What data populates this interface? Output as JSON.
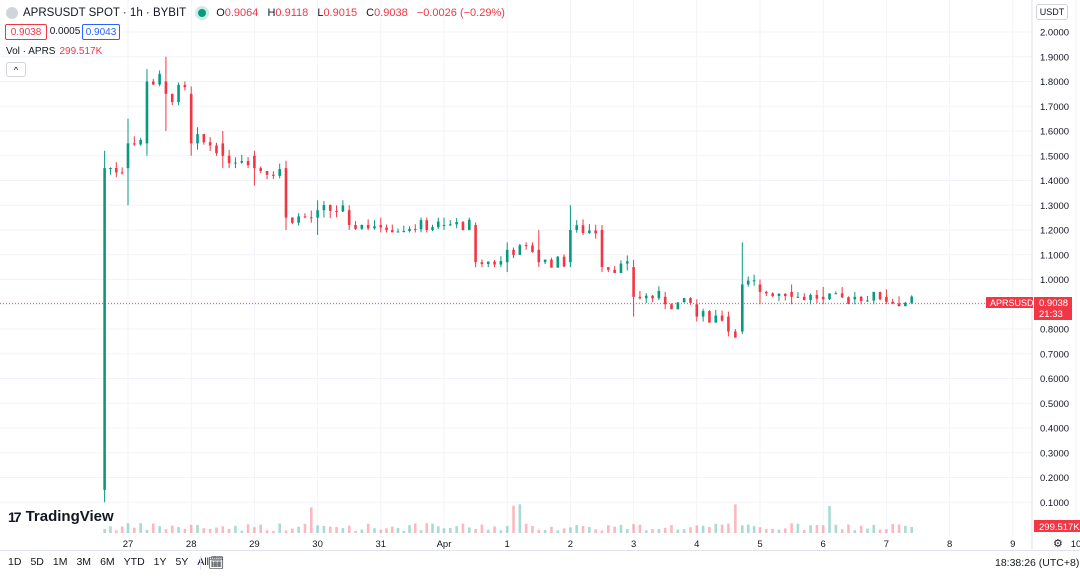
{
  "header": {
    "symbol_title": "APRSUSDT SPOT · 1h · BYBIT",
    "ohlc": {
      "o_label": "O",
      "o": "0.9064",
      "h_label": "H",
      "h": "0.9118",
      "l_label": "L",
      "l": "0.9015",
      "c_label": "C",
      "c": "0.9038"
    },
    "change": "−0.0026 (−0.29%)",
    "bid": "0.9038",
    "spread": "0.0005",
    "ask": "0.9043",
    "volume_label": "Vol · APRS",
    "volume_value": "299.517K",
    "collapse_glyph": "^",
    "currency": "USDT"
  },
  "branding": {
    "logo_mark": "17",
    "logo_text": "TradingView"
  },
  "toolbar": {
    "ranges": [
      "1D",
      "5D",
      "1M",
      "3M",
      "6M",
      "YTD",
      "1Y",
      "5Y",
      "All"
    ],
    "clock": "18:38:26 (UTC+8)"
  },
  "colors": {
    "up": "#089981",
    "down": "#f23645",
    "grid": "#f0f3fa",
    "text": "#131722"
  },
  "chart_data": {
    "type": "candlestick",
    "interval": "1h",
    "price_axis_ticks": [
      "2.0000",
      "1.9000",
      "1.8000",
      "1.7000",
      "1.6000",
      "1.5000",
      "1.4000",
      "1.3000",
      "1.2000",
      "1.1000",
      "1.0000",
      "0.9000",
      "0.8000",
      "0.7000",
      "0.6000",
      "0.5000",
      "0.4000",
      "0.3000",
      "0.2000",
      "0.1000"
    ],
    "ylim": [
      0.0,
      2.0
    ],
    "time_axis_labels": [
      "27",
      "28",
      "29",
      "30",
      "31",
      "Apr",
      "1",
      "2",
      "3",
      "4",
      "5",
      "6",
      "7",
      "8",
      "9",
      "10"
    ],
    "time_axis_values": [
      27,
      28,
      29,
      30,
      31,
      32,
      33,
      34,
      35,
      36,
      37,
      38,
      39,
      40,
      41,
      42
    ],
    "price_line": {
      "label": "APRSUSDT",
      "value": "0.9038",
      "countdown": "21:33",
      "price": 0.9038
    },
    "volume_label_value": "299.517K",
    "candles_daily_shape": [
      {
        "day": 26.63,
        "open": 0.15,
        "high": 1.52,
        "low": 0.1,
        "close": 1.45
      },
      {
        "day": 27.0,
        "open": 1.45,
        "high": 1.65,
        "low": 1.3,
        "close": 1.55
      },
      {
        "day": 27.3,
        "open": 1.55,
        "high": 1.85,
        "low": 1.5,
        "close": 1.8
      },
      {
        "day": 27.6,
        "open": 1.8,
        "high": 1.9,
        "low": 1.6,
        "close": 1.75
      },
      {
        "day": 28.0,
        "open": 1.75,
        "high": 1.78,
        "low": 1.5,
        "close": 1.55
      },
      {
        "day": 28.5,
        "open": 1.55,
        "high": 1.6,
        "low": 1.45,
        "close": 1.5
      },
      {
        "day": 29.0,
        "open": 1.5,
        "high": 1.52,
        "low": 1.38,
        "close": 1.45
      },
      {
        "day": 29.5,
        "open": 1.45,
        "high": 1.48,
        "low": 1.2,
        "close": 1.25
      },
      {
        "day": 30.0,
        "open": 1.25,
        "high": 1.32,
        "low": 1.18,
        "close": 1.28
      },
      {
        "day": 30.5,
        "open": 1.28,
        "high": 1.3,
        "low": 1.2,
        "close": 1.22
      },
      {
        "day": 31.0,
        "open": 1.22,
        "high": 1.25,
        "low": 1.19,
        "close": 1.21
      },
      {
        "day": 32.0,
        "open": 1.22,
        "high": 1.25,
        "low": 1.2,
        "close": 1.22
      },
      {
        "day": 32.5,
        "open": 1.22,
        "high": 1.23,
        "low": 1.05,
        "close": 1.07
      },
      {
        "day": 33.0,
        "open": 1.07,
        "high": 1.15,
        "low": 1.03,
        "close": 1.12
      },
      {
        "day": 33.5,
        "open": 1.12,
        "high": 1.2,
        "low": 1.05,
        "close": 1.07
      },
      {
        "day": 34.0,
        "open": 1.07,
        "high": 1.3,
        "low": 1.05,
        "close": 1.2
      },
      {
        "day": 34.5,
        "open": 1.2,
        "high": 1.22,
        "low": 1.03,
        "close": 1.05
      },
      {
        "day": 35.0,
        "open": 1.05,
        "high": 1.08,
        "low": 0.85,
        "close": 0.93
      },
      {
        "day": 35.5,
        "open": 0.93,
        "high": 0.95,
        "low": 0.88,
        "close": 0.9
      },
      {
        "day": 36.0,
        "open": 0.9,
        "high": 0.92,
        "low": 0.83,
        "close": 0.85
      },
      {
        "day": 36.5,
        "open": 0.85,
        "high": 0.87,
        "low": 0.77,
        "close": 0.79
      },
      {
        "day": 36.72,
        "open": 0.79,
        "high": 1.15,
        "low": 0.78,
        "close": 0.98
      },
      {
        "day": 37.0,
        "open": 0.98,
        "high": 1.0,
        "low": 0.9,
        "close": 0.95
      },
      {
        "day": 37.5,
        "open": 0.95,
        "high": 0.98,
        "low": 0.9,
        "close": 0.93
      },
      {
        "day": 38.0,
        "open": 0.93,
        "high": 0.97,
        "low": 0.9,
        "close": 0.92
      },
      {
        "day": 38.5,
        "open": 0.92,
        "high": 0.95,
        "low": 0.9,
        "close": 0.93
      },
      {
        "day": 39.0,
        "open": 0.93,
        "high": 0.96,
        "low": 0.9,
        "close": 0.91
      },
      {
        "day": 39.5,
        "open": 0.91,
        "high": 0.93,
        "low": 0.9,
        "close": 0.9038
      }
    ]
  }
}
